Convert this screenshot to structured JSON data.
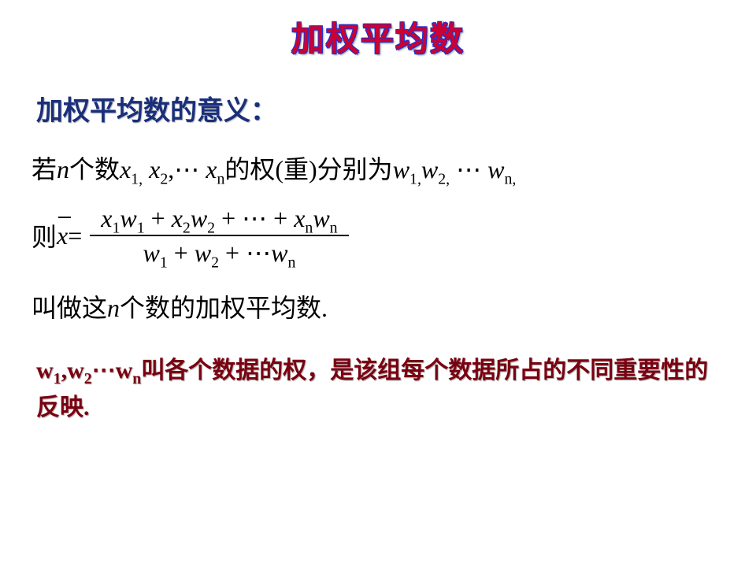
{
  "title": "加权平均数",
  "subtitle": "加权平均数的意义：",
  "line1": {
    "t1": "若",
    "n": "n",
    "t2": "个数",
    "x": "x",
    "s1": "1,",
    "s2": "2",
    "comma": ",",
    "dots": "⋯",
    "sn": "n",
    "t3": "的权(重)分别为",
    "w": "w",
    "ws1": "1,",
    "ws2": "2,",
    "wsn": "n,"
  },
  "formula": {
    "prefix": "则",
    "xbar": "x",
    "eq": " = ",
    "num": {
      "x": "x",
      "w": "w",
      "s1": "1",
      "s2": "2",
      "sn": "n",
      "plus": " + ",
      "dots": "⋯"
    },
    "den": {
      "w": "w",
      "s1": "1",
      "s2": "2",
      "sn": "n",
      "plus": " + ",
      "dots": "⋯"
    }
  },
  "conclusion": {
    "t1": "叫做这",
    "n": "n",
    "t2": "个数的加权平均数."
  },
  "footer": {
    "w": "w",
    "s1": "1",
    "s2": "2",
    "sn": "n",
    "comma": ",",
    "dots": "⋯",
    "t1": "叫各个数据的权，是该组每个数据所占的不同重要性的反映."
  },
  "colors": {
    "title_fill": "#cc0033",
    "title_outline": "#2233cc",
    "subtitle": "#1a2f7a",
    "body": "#000000",
    "footer": "#7a0010",
    "background": "#ffffff"
  },
  "typography": {
    "title_fontsize": 42,
    "subtitle_fontsize": 34,
    "body_fontsize": 32,
    "footer_fontsize": 30
  }
}
